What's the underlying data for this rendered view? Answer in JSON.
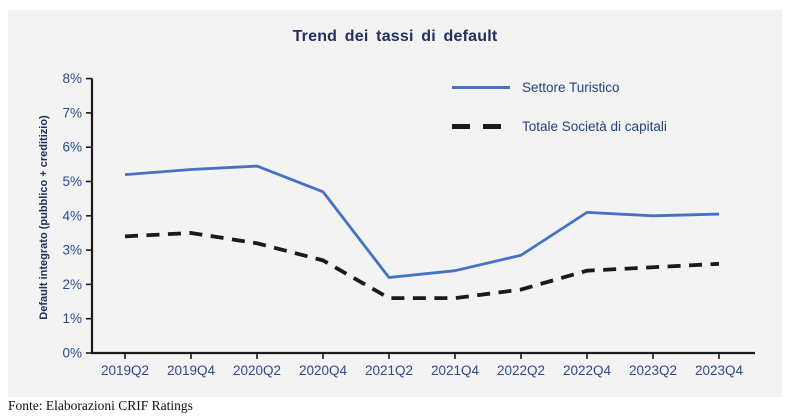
{
  "page": {
    "footer": "Fonte: Elaborazioni CRIF Ratings"
  },
  "chart": {
    "title": "Trend dei tassi di default",
    "y_axis_title": "Default integrato (pubblico + creditizio)"
  },
  "colors": {
    "accent_blue": "#4472C4",
    "dashed_black": "#1a1a1a",
    "axis_line": "#1a1a1a",
    "tick_label_blue": "#2b4a8e",
    "title_navy": "#1f3061",
    "panel_bg": "#f3f3f3"
  },
  "chart_data": {
    "type": "line",
    "categories": [
      "2019Q2",
      "2019Q4",
      "2020Q2",
      "2020Q4",
      "2021Q2",
      "2021Q4",
      "2022Q2",
      "2022Q4",
      "2023Q2",
      "2023Q4"
    ],
    "series": [
      {
        "name": "Settore Turistico",
        "style": "solid",
        "color_key": "accent_blue",
        "values": [
          5.2,
          5.35,
          5.45,
          4.7,
          2.2,
          2.4,
          2.85,
          4.1,
          4.0,
          4.05
        ]
      },
      {
        "name": "Totale Società di capitali",
        "style": "dashed",
        "color_key": "dashed_black",
        "values": [
          3.4,
          3.5,
          3.2,
          2.7,
          1.6,
          1.6,
          1.85,
          2.4,
          2.5,
          2.6
        ]
      }
    ],
    "title": "Trend dei tassi di default",
    "xlabel": "",
    "ylabel": "Default integrato (pubblico + creditizio)",
    "ylim": [
      0,
      8
    ],
    "y_tick_labels": [
      "0%",
      "1%",
      "2%",
      "3%",
      "4%",
      "5%",
      "6%",
      "7%",
      "8%"
    ],
    "grid": false,
    "legend_position": "top-right"
  }
}
